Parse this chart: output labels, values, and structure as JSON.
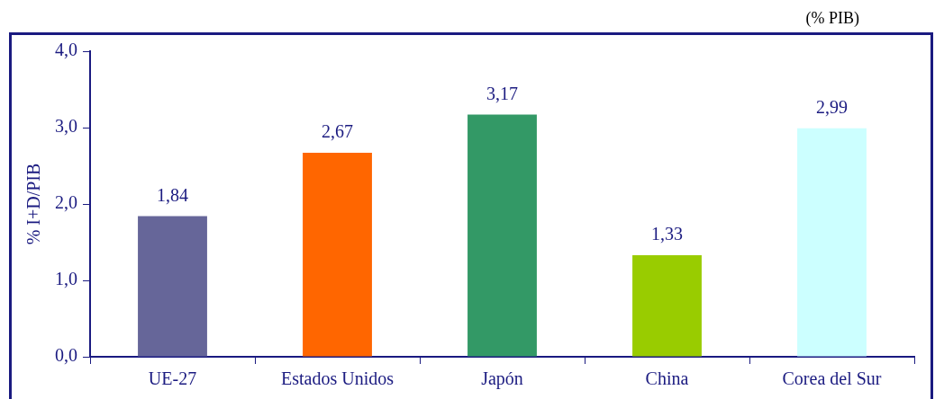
{
  "chart_data": {
    "type": "bar",
    "ylabel": "% I+D/PIB",
    "annotations": [
      "(% PIB)"
    ],
    "categories": [
      "UE-27",
      "Estados Unidos",
      "Japón",
      "China",
      "Corea del Sur"
    ],
    "values": [
      1.84,
      2.67,
      3.17,
      1.33,
      2.99
    ],
    "colors": [
      "#666699",
      "#ff6600",
      "#339966",
      "#99cc00",
      "#ccffff"
    ],
    "value_labels": [
      "1,84",
      "2,67",
      "3,17",
      "1,33",
      "2,99"
    ],
    "ylim": [
      0,
      4
    ],
    "yticks": [
      {
        "value": 0,
        "label": "0,0"
      },
      {
        "value": 1,
        "label": "1,0"
      },
      {
        "value": 2,
        "label": "2,0"
      },
      {
        "value": 3,
        "label": "3,0"
      },
      {
        "value": 4,
        "label": "4,0"
      }
    ],
    "grid": false,
    "legend": false
  }
}
